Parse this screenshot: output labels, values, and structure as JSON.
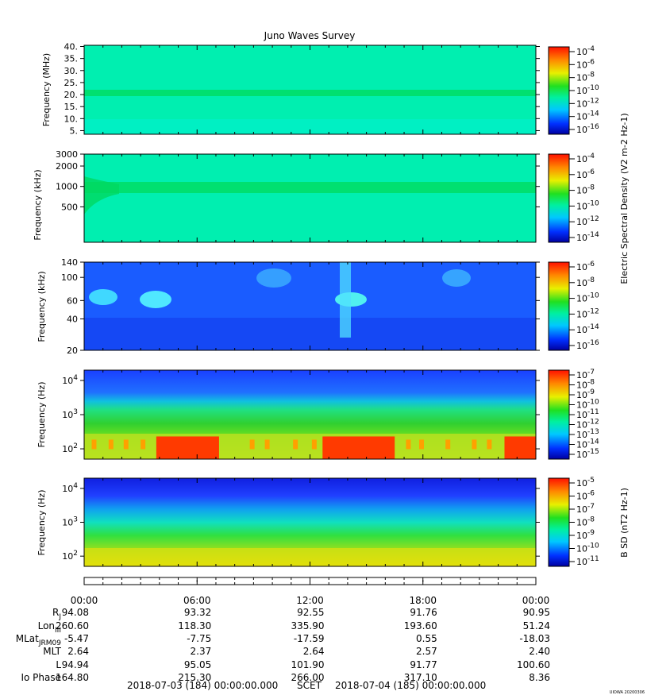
{
  "chart_data": [
    {
      "type": "heatmap",
      "title": "Juno Waves Survey",
      "ylabel": "Frequency (MHz)",
      "y_tick_labels": [
        "40.",
        "35.",
        "30.",
        "25.",
        "20.",
        "15.",
        "10.",
        "5."
      ],
      "y_ticks": [
        40,
        35,
        30,
        25,
        20,
        15,
        10,
        5
      ],
      "ylim": [
        3.5,
        40.5
      ],
      "colorbar_tick_labels": [
        "10-4",
        "10-6",
        "10-8",
        "10-10",
        "10-12",
        "10-14",
        "10-16"
      ],
      "features": [
        {
          "value": "band near 21 MHz",
          "y": 21
        }
      ]
    },
    {
      "type": "heatmap",
      "ylabel": "Frequency (kHz)",
      "y_tick_labels": [
        "3000",
        "2000",
        "1000",
        "500"
      ],
      "y_ticks": [
        3000,
        2000,
        1000,
        500
      ],
      "ylim": [
        150,
        3000
      ],
      "colorbar_tick_labels": [
        "10-4",
        "10-6",
        "10-8",
        "10-10",
        "10-12",
        "10-14"
      ],
      "features": [
        {
          "value": "band near 950 kHz",
          "y": 950
        }
      ]
    },
    {
      "type": "heatmap",
      "ylabel": "Frequency (kHz)",
      "y_tick_labels": [
        "140",
        "100",
        "60",
        "40",
        "20"
      ],
      "y_ticks": [
        140,
        100,
        60,
        40,
        20
      ],
      "ylim": [
        20,
        140
      ],
      "colorbar_tick_labels": [
        "10-6",
        "10-8",
        "10-10",
        "10-12",
        "10-14",
        "10-16"
      ],
      "colorbar_label": "Electric Spectral Density (V2 m-2 Hz-1)",
      "features": [
        {
          "value": "emission near 63 kHz",
          "x_start": "00:40",
          "x_end": "02:50"
        },
        {
          "value": "emission near 60 kHz",
          "x_start": "03:20",
          "x_end": "05:00"
        },
        {
          "value": "emission near 100 kHz",
          "x_start": "09:00",
          "x_end": "11:30"
        },
        {
          "value": "vertical bursts",
          "x_start": "13:50",
          "x_end": "14:40"
        },
        {
          "value": "emission near 100 kHz",
          "x_start": "18:20",
          "x_end": "19:50"
        }
      ]
    },
    {
      "type": "heatmap",
      "ylabel": "Frequency (Hz)",
      "y_tick_labels": [
        {
          "base": "10",
          "exp": "4"
        },
        {
          "base": "10",
          "exp": "3"
        },
        {
          "base": "10",
          "exp": "2"
        }
      ],
      "y_ticks": [
        10000,
        1000,
        100
      ],
      "ylim": [
        50,
        20000
      ],
      "colorbar_tick_labels": [
        "10-7",
        "10-8",
        "10-9",
        "10-10",
        "10-11",
        "10-12",
        "10-13",
        "10-14",
        "10-15"
      ],
      "features": [
        {
          "value": "intense emission near 100-200 Hz",
          "x_start": "03:50",
          "x_end": "07:10"
        },
        {
          "value": "intense emission near 100-200 Hz",
          "x_start": "12:40",
          "x_end": "16:30"
        },
        {
          "value": "intense emission near 100-200 Hz",
          "x_start": "22:20",
          "x_end": "24:00"
        }
      ]
    },
    {
      "type": "heatmap",
      "ylabel": "Frequency (Hz)",
      "y_tick_labels": [
        {
          "base": "10",
          "exp": "4"
        },
        {
          "base": "10",
          "exp": "3"
        },
        {
          "base": "10",
          "exp": "2"
        }
      ],
      "y_ticks": [
        10000,
        1000,
        100
      ],
      "ylim": [
        50,
        20000
      ],
      "colorbar_tick_labels": [
        "10-5",
        "10-6",
        "10-7",
        "10-8",
        "10-9",
        "10-10",
        "10-11"
      ],
      "colorbar_label": "B SD (nT2 Hz-1)"
    }
  ],
  "x_axis": {
    "tick_labels": [
      "00:00",
      "06:00",
      "12:00",
      "18:00",
      "00:00"
    ],
    "ticks": [
      0,
      6,
      12,
      18,
      24
    ]
  },
  "ephemeris": [
    {
      "label": "RJ",
      "values": [
        "94.08",
        "93.32",
        "92.55",
        "91.76",
        "90.95"
      ]
    },
    {
      "label": "LonIII",
      "values": [
        "260.60",
        "118.30",
        "335.90",
        "193.60",
        "51.24"
      ]
    },
    {
      "label": "MLatJRM09",
      "values": [
        "-5.47",
        "-7.75",
        "-17.59",
        "0.55",
        "-18.03"
      ]
    },
    {
      "label": "MLT",
      "values": [
        "2.64",
        "2.37",
        "2.64",
        "2.57",
        "2.40"
      ]
    },
    {
      "label": "L",
      "values": [
        "94.94",
        "95.05",
        "101.90",
        "91.77",
        "100.60"
      ]
    },
    {
      "label": "Io Phase",
      "values": [
        "164.80",
        "215.30",
        "266.00",
        "317.10",
        "8.36"
      ]
    }
  ],
  "footer": {
    "start": "2018-07-03 (184) 00:00:00.000",
    "scet": "SCET",
    "end": "2018-07-04 (185) 00:00:00.000",
    "stamp": "UIOWA 20200306"
  }
}
